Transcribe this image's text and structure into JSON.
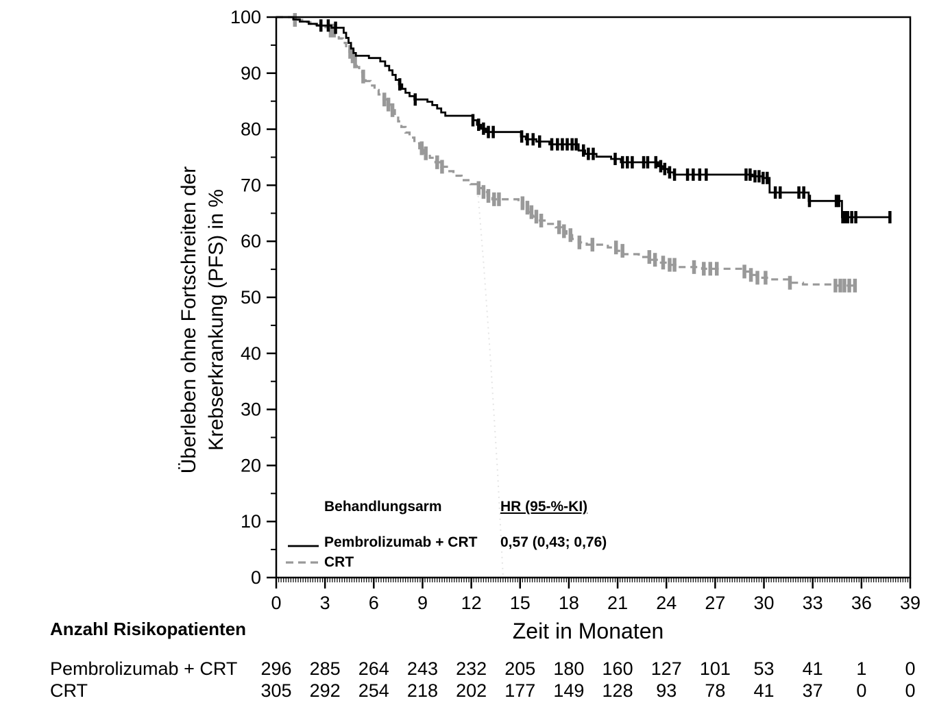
{
  "chart_data": {
    "type": "line",
    "subtype": "kaplan-meier-step",
    "title": "",
    "xlabel": "Zeit in Monaten",
    "ylabel_line1": "Überleben ohne Fortschreiten der",
    "ylabel_line2": "Krebserkrankung (PFS) in %",
    "xlim": [
      0,
      39
    ],
    "ylim": [
      0,
      100
    ],
    "grid": false,
    "x_major_ticks": [
      0,
      3,
      6,
      9,
      12,
      15,
      18,
      21,
      24,
      27,
      30,
      33,
      36,
      39
    ],
    "x_minor_tick_step": 0.15,
    "y_major_ticks": [
      0,
      10,
      20,
      30,
      40,
      50,
      60,
      70,
      80,
      90,
      100
    ],
    "y_minor_tick_step": 5,
    "legend": {
      "position": "inside-bottom-left",
      "col1_header": "Behandlungsarm",
      "col2_header": "HR (95-%-KI)",
      "rows": [
        {
          "name": "Pembrolizumab + CRT",
          "hr": "0,57 (0,43; 0,76)",
          "line": "solid",
          "color": "#000000"
        },
        {
          "name": "CRT",
          "hr": "",
          "line": "dashed",
          "color": "#999999"
        }
      ]
    },
    "series": [
      {
        "name": "Pembrolizumab + CRT",
        "color": "#000000",
        "line": "solid",
        "steps": [
          [
            0,
            100
          ],
          [
            1.05,
            99.6
          ],
          [
            1.45,
            99.2
          ],
          [
            2.0,
            98.8
          ],
          [
            2.5,
            98.5
          ],
          [
            3.4,
            98.1
          ],
          [
            4.15,
            97.2
          ],
          [
            4.3,
            96.3
          ],
          [
            4.45,
            95.4
          ],
          [
            4.6,
            94.4
          ],
          [
            4.75,
            93.6
          ],
          [
            4.9,
            93.1
          ],
          [
            5.7,
            92.7
          ],
          [
            6.4,
            92.1
          ],
          [
            6.7,
            91.3
          ],
          [
            6.95,
            90.5
          ],
          [
            7.15,
            89.7
          ],
          [
            7.35,
            88.8
          ],
          [
            7.55,
            88.0
          ],
          [
            7.75,
            87.2
          ],
          [
            7.95,
            86.5
          ],
          [
            8.2,
            85.9
          ],
          [
            8.5,
            85.3
          ],
          [
            9.3,
            84.9
          ],
          [
            9.6,
            84.3
          ],
          [
            9.9,
            83.7
          ],
          [
            10.15,
            83.0
          ],
          [
            10.4,
            82.4
          ],
          [
            12.1,
            81.6
          ],
          [
            12.35,
            80.8
          ],
          [
            12.6,
            80.1
          ],
          [
            12.9,
            79.5
          ],
          [
            15.05,
            78.7
          ],
          [
            15.35,
            78.2
          ],
          [
            16.0,
            77.8
          ],
          [
            16.8,
            77.3
          ],
          [
            18.6,
            76.2
          ],
          [
            19.0,
            75.6
          ],
          [
            19.7,
            75.1
          ],
          [
            20.6,
            74.7
          ],
          [
            21.2,
            74.1
          ],
          [
            23.5,
            73.4
          ],
          [
            23.8,
            72.9
          ],
          [
            24.1,
            72.3
          ],
          [
            24.45,
            71.9
          ],
          [
            29.3,
            71.6
          ],
          [
            29.9,
            71.3
          ],
          [
            30.35,
            68.7
          ],
          [
            32.75,
            67.2
          ],
          [
            34.8,
            64.3
          ],
          [
            37.75,
            64.3
          ]
        ],
        "censor_times": [
          2.75,
          3.2,
          3.65,
          7.6,
          8.55,
          12.1,
          12.45,
          12.75,
          13.05,
          13.35,
          15.1,
          15.45,
          15.8,
          16.2,
          16.95,
          17.3,
          17.6,
          17.9,
          18.2,
          18.45,
          18.9,
          19.2,
          19.5,
          20.85,
          21.3,
          21.6,
          21.9,
          22.6,
          22.85,
          23.35,
          23.65,
          23.9,
          24.2,
          24.5,
          25.3,
          25.65,
          26.05,
          26.45,
          28.9,
          29.15,
          29.45,
          29.7,
          29.95,
          30.2,
          30.7,
          31.0,
          32.15,
          32.45,
          32.8,
          34.45,
          34.6,
          34.85,
          35.0,
          35.15,
          35.4,
          35.65,
          37.75
        ]
      },
      {
        "name": "CRT",
        "color": "#999999",
        "line": "dashed",
        "steps": [
          [
            0,
            100
          ],
          [
            1.1,
            99.5
          ],
          [
            1.6,
            99.1
          ],
          [
            2.1,
            98.6
          ],
          [
            2.7,
            98.2
          ],
          [
            3.25,
            97.6
          ],
          [
            3.6,
            96.9
          ],
          [
            3.85,
            96.2
          ],
          [
            4.1,
            95.4
          ],
          [
            4.3,
            94.6
          ],
          [
            4.5,
            93.8
          ],
          [
            4.65,
            93.0
          ],
          [
            4.8,
            92.1
          ],
          [
            4.95,
            91.1
          ],
          [
            5.1,
            90.2
          ],
          [
            5.3,
            89.4
          ],
          [
            5.5,
            88.6
          ],
          [
            5.8,
            87.8
          ],
          [
            6.05,
            87.0
          ],
          [
            6.3,
            86.2
          ],
          [
            6.6,
            85.3
          ],
          [
            6.85,
            84.4
          ],
          [
            7.1,
            83.4
          ],
          [
            7.3,
            82.4
          ],
          [
            7.5,
            81.4
          ],
          [
            7.7,
            80.4
          ],
          [
            7.95,
            79.4
          ],
          [
            8.2,
            78.5
          ],
          [
            8.5,
            77.5
          ],
          [
            8.8,
            76.6
          ],
          [
            9.1,
            75.7
          ],
          [
            9.45,
            74.9
          ],
          [
            9.8,
            74.1
          ],
          [
            10.15,
            73.3
          ],
          [
            10.5,
            72.5
          ],
          [
            10.9,
            71.7
          ],
          [
            11.4,
            70.9
          ],
          [
            11.95,
            70.2
          ],
          [
            12.4,
            69.5
          ],
          [
            12.7,
            68.8
          ],
          [
            13.0,
            68.1
          ],
          [
            13.3,
            67.5
          ],
          [
            14.9,
            66.8
          ],
          [
            15.2,
            66.0
          ],
          [
            15.5,
            65.2
          ],
          [
            15.8,
            64.4
          ],
          [
            16.15,
            63.7
          ],
          [
            16.6,
            63.1
          ],
          [
            17.2,
            62.5
          ],
          [
            17.55,
            61.8
          ],
          [
            17.85,
            61.1
          ],
          [
            18.2,
            60.4
          ],
          [
            18.6,
            59.8
          ],
          [
            19.1,
            59.4
          ],
          [
            20.4,
            58.9
          ],
          [
            20.95,
            58.3
          ],
          [
            21.35,
            57.7
          ],
          [
            22.3,
            57.2
          ],
          [
            23.0,
            56.7
          ],
          [
            23.6,
            56.2
          ],
          [
            24.1,
            55.8
          ],
          [
            24.55,
            55.4
          ],
          [
            26.2,
            55.1
          ],
          [
            28.75,
            54.6
          ],
          [
            29.15,
            54.0
          ],
          [
            29.55,
            53.5
          ],
          [
            30.3,
            53.2
          ],
          [
            31.55,
            52.6
          ],
          [
            32.4,
            52.3
          ],
          [
            34.3,
            52.1
          ],
          [
            35.65,
            52.1
          ]
        ],
        "censor_times": [
          1.15,
          3.35,
          3.55,
          4.55,
          4.7,
          4.85,
          5.35,
          6.65,
          6.9,
          7.15,
          8.95,
          9.2,
          9.9,
          10.2,
          12.45,
          12.75,
          13.05,
          13.4,
          13.7,
          15.15,
          15.45,
          15.7,
          16.0,
          16.3,
          17.4,
          17.7,
          18.1,
          18.65,
          19.45,
          20.9,
          21.3,
          22.95,
          23.3,
          23.8,
          24.2,
          24.5,
          25.7,
          26.3,
          26.7,
          27.1,
          28.8,
          29.2,
          29.6,
          30.1,
          31.6,
          34.4,
          34.7,
          34.95,
          35.25,
          35.6
        ]
      }
    ],
    "risk_table": {
      "title": "Anzahl Risikopatienten",
      "time_points": [
        0,
        3,
        6,
        9,
        12,
        15,
        18,
        21,
        24,
        27,
        30,
        33,
        36,
        39
      ],
      "rows": [
        {
          "label": "Pembrolizumab + CRT",
          "counts": [
            296,
            285,
            264,
            243,
            232,
            205,
            180,
            160,
            127,
            101,
            53,
            41,
            1,
            0
          ]
        },
        {
          "label": "CRT",
          "counts": [
            305,
            292,
            254,
            218,
            202,
            177,
            149,
            128,
            93,
            78,
            41,
            37,
            0,
            0
          ]
        }
      ]
    }
  }
}
